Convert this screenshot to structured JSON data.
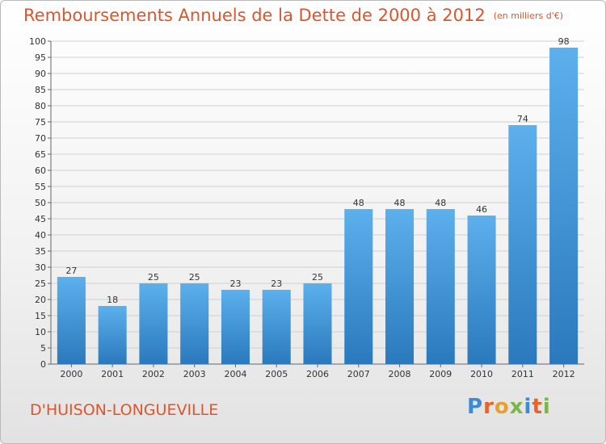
{
  "chart_data": {
    "type": "bar",
    "title": "Remboursements Annuels de la Dette de 2000 à 2012",
    "unit": "(en milliers d'€)",
    "categories": [
      "2000",
      "2001",
      "2002",
      "2003",
      "2004",
      "2005",
      "2006",
      "2007",
      "2008",
      "2009",
      "2010",
      "2011",
      "2012"
    ],
    "values": [
      27,
      18,
      25,
      25,
      23,
      23,
      25,
      48,
      48,
      48,
      46,
      74,
      98
    ],
    "ylim": [
      0,
      100
    ],
    "yticks": [
      0,
      5,
      10,
      15,
      20,
      25,
      30,
      35,
      40,
      45,
      50,
      55,
      60,
      65,
      70,
      75,
      80,
      85,
      90,
      95,
      100
    ],
    "grid": true,
    "bar_color": "#4a9fe0"
  },
  "commune": "D'HUISON-LONGUEVILLE",
  "logo": {
    "text": "Proxiti",
    "letters": [
      "P",
      "r",
      "o",
      "x",
      "i",
      "t",
      "i"
    ]
  }
}
